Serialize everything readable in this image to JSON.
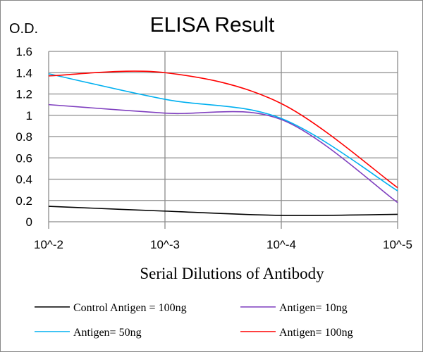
{
  "chart_data": {
    "type": "line",
    "title": "ELISA Result",
    "ylabel": "O.D.",
    "xlabel": "Serial Dilutions  of Antibody",
    "x": [
      "10^-2",
      "10^-3",
      "10^-4",
      "10^-5"
    ],
    "ylim": [
      0,
      1.6
    ],
    "yticks": [
      "0",
      "0.2",
      "0.4",
      "0.6",
      "0.8",
      "1",
      "1.2",
      "1.4",
      "1.6"
    ],
    "grid": true,
    "legend_position": "bottom",
    "series": [
      {
        "name": "Control Antigen = 100ng",
        "color": "#000000",
        "values": [
          0.145,
          0.1,
          0.06,
          0.07
        ]
      },
      {
        "name": "Antigen= 10ng",
        "color": "#7f3fbf",
        "values": [
          1.1,
          1.02,
          0.96,
          0.18
        ]
      },
      {
        "name": "Antigen= 50ng",
        "color": "#00b0f0",
        "values": [
          1.39,
          1.15,
          0.97,
          0.29
        ]
      },
      {
        "name": "Antigen= 100ng",
        "color": "#ff0000",
        "values": [
          1.37,
          1.4,
          1.11,
          0.32
        ]
      }
    ]
  }
}
